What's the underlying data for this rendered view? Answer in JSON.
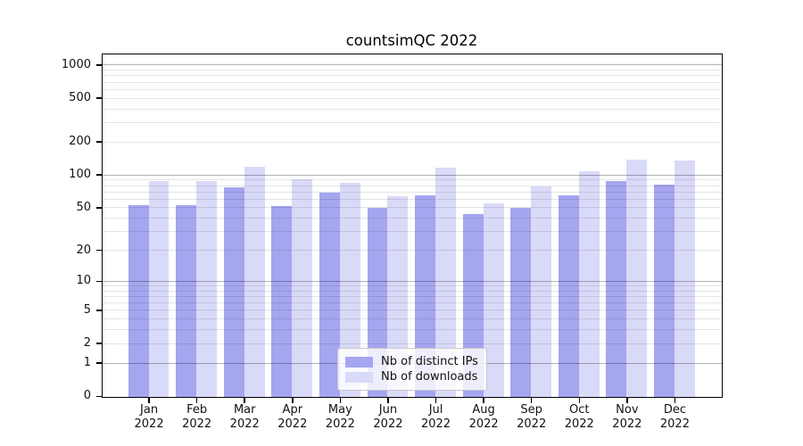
{
  "chart_data": {
    "type": "bar",
    "title": "countsimQC 2022",
    "categories": [
      "Jan 2022",
      "Feb 2022",
      "Mar 2022",
      "Apr 2022",
      "May 2022",
      "Jun 2022",
      "Jul 2022",
      "Aug 2022",
      "Sep 2022",
      "Oct 2022",
      "Nov 2022",
      "Dec 2022"
    ],
    "series": [
      {
        "name": "Nb of distinct IPs",
        "color": "#a5a5f0",
        "values": [
          53,
          53,
          78,
          52,
          69,
          50,
          66,
          44,
          50,
          66,
          89,
          82
        ]
      },
      {
        "name": "Nb of downloads",
        "color": "#d9d9f8",
        "values": [
          88,
          88,
          121,
          92,
          86,
          65,
          118,
          55,
          80,
          110,
          140,
          136
        ]
      }
    ],
    "xlabel": "",
    "ylabel": "",
    "yscale": "log1p",
    "yticks": [
      0,
      1,
      2,
      5,
      10,
      20,
      50,
      100,
      200,
      500,
      1000
    ],
    "ylim": [
      0,
      1250
    ],
    "grid": {
      "on": true,
      "major_ticks": [
        1,
        10,
        100,
        1000
      ],
      "minor_mantissas": [
        2,
        3,
        4,
        5,
        6,
        7,
        8,
        9
      ],
      "drawn_above_bars": true
    },
    "legend": {
      "position": "lower center",
      "items": [
        "Nb of distinct IPs",
        "Nb of downloads"
      ]
    },
    "colors": {
      "background": "#ffffff",
      "spine": "#000000",
      "major_grid": "#b3b3b3",
      "minor_grid": "#e6e6e6",
      "text": "#111111"
    }
  }
}
